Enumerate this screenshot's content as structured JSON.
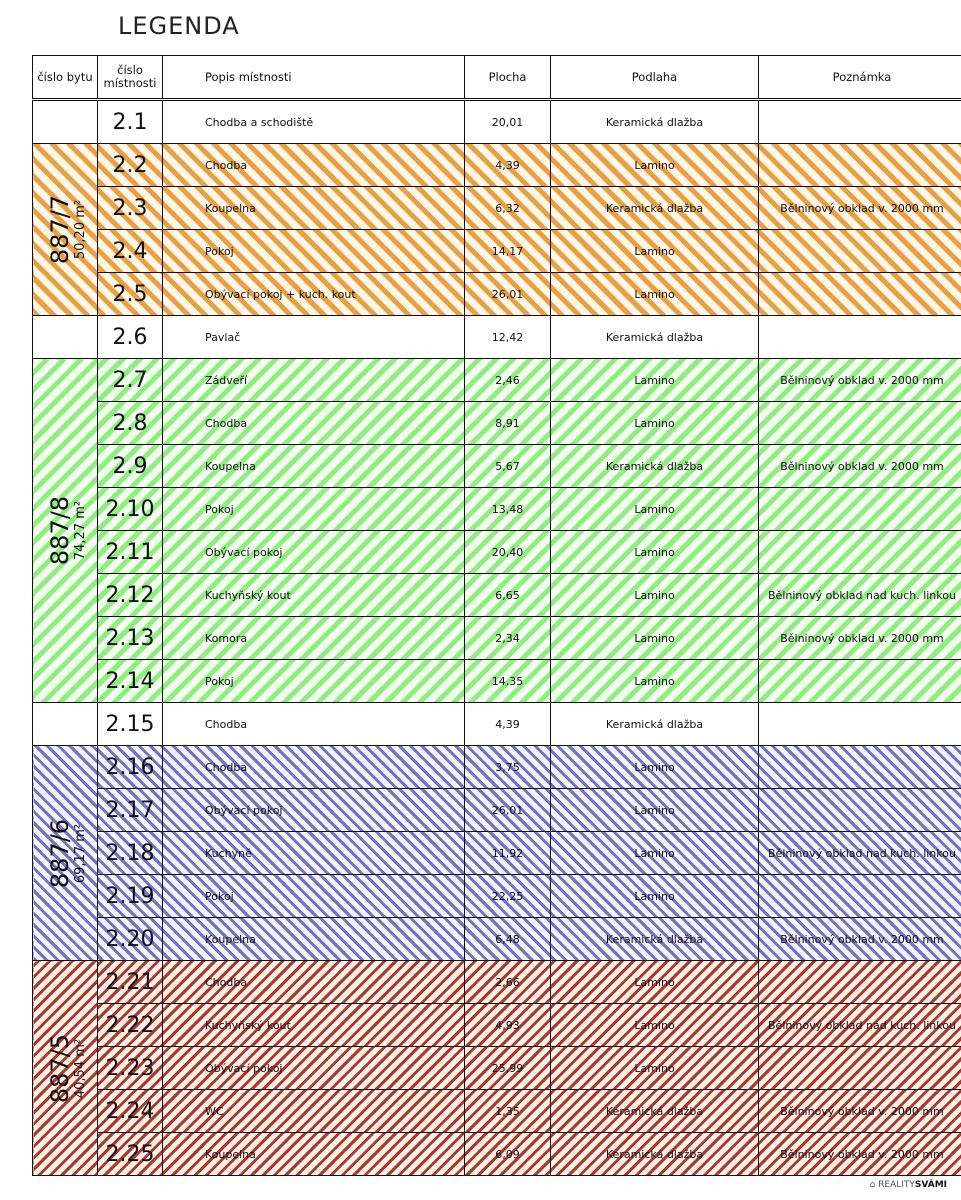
{
  "title": "LEGENDA",
  "headers": {
    "apartment": "číslo bytu",
    "room_no": "číslo místnosti",
    "description": "Popis místnosti",
    "area": "Plocha",
    "floor": "Podlaha",
    "note": "Poznámka"
  },
  "apartments": [
    {
      "code": "887/7",
      "size": "50,20 m²",
      "color": "#e8a040",
      "bg": "#fff6ea",
      "direction": "backslash",
      "first": 1,
      "count": 4
    },
    {
      "code": "887/8",
      "size": "74,27 m²",
      "color": "#90ee80",
      "bg": "#f2fdf0",
      "direction": "slash",
      "first": 6,
      "count": 8
    },
    {
      "code": "887/6",
      "size": "69,17 m²",
      "color": "#7272c4",
      "bg": "#f4f4ff",
      "direction": "backslash",
      "first": 15,
      "count": 5
    },
    {
      "code": "887/5",
      "size": "40,54 m²",
      "color": "#a83a2a",
      "bg": "#fff0ec",
      "direction": "slash",
      "first": 20,
      "count": 5
    }
  ],
  "rows": [
    {
      "no": "2.1",
      "name": "Chodba a schodiště",
      "area": "20,01",
      "floor": "Keramická dlažba",
      "note": ""
    },
    {
      "no": "2.2",
      "name": "Chodba",
      "area": "4,39",
      "floor": "Lamino",
      "note": ""
    },
    {
      "no": "2.3",
      "name": "Koupelna",
      "area": "6,32",
      "floor": "Keramická dlažba",
      "note": "Bělninový obklad v. 2000 mm"
    },
    {
      "no": "2.4",
      "name": "Pokoj",
      "area": "14,17",
      "floor": "Lamino",
      "note": ""
    },
    {
      "no": "2.5",
      "name": "Obývací pokoj + kuch. kout",
      "area": "26,01",
      "floor": "Lamino",
      "note": ""
    },
    {
      "no": "2.6",
      "name": "Pavlač",
      "area": "12,42",
      "floor": "Keramická dlažba",
      "note": ""
    },
    {
      "no": "2.7",
      "name": "Zádveří",
      "area": "2,46",
      "floor": "Lamino",
      "note": "Bělninový obklad v. 2000 mm"
    },
    {
      "no": "2.8",
      "name": "Chodba",
      "area": "8,91",
      "floor": "Lamino",
      "note": ""
    },
    {
      "no": "2.9",
      "name": "Koupelna",
      "area": "5,67",
      "floor": "Keramická dlažba",
      "note": "Bělninový obklad v. 2000 mm"
    },
    {
      "no": "2.10",
      "name": "Pokoj",
      "area": "13,48",
      "floor": "Lamino",
      "note": ""
    },
    {
      "no": "2.11",
      "name": "Obývací pokoj",
      "area": "20,40",
      "floor": "Lamino",
      "note": ""
    },
    {
      "no": "2.12",
      "name": "Kuchyňský kout",
      "area": "6,65",
      "floor": "Lamino",
      "note": "Bělninový obklad nad kuch. linkou"
    },
    {
      "no": "2.13",
      "name": "Komora",
      "area": "2,34",
      "floor": "Lamino",
      "note": "Bělninový obklad v. 2000 mm"
    },
    {
      "no": "2.14",
      "name": "Pokoj",
      "area": "14,35",
      "floor": "Lamino",
      "note": ""
    },
    {
      "no": "2.15",
      "name": "Chodba",
      "area": "4,39",
      "floor": "Keramická dlažba",
      "note": ""
    },
    {
      "no": "2.16",
      "name": "Chodba",
      "area": "3,75",
      "floor": "Lamino",
      "note": ""
    },
    {
      "no": "2.17",
      "name": "Obývací pokoj",
      "area": "26,01",
      "floor": "Lamino",
      "note": ""
    },
    {
      "no": "2.18",
      "name": "Kuchyně",
      "area": "11,92",
      "floor": "Lamino",
      "note": "Bělninový obklad nad kuch. linkou"
    },
    {
      "no": "2.19",
      "name": "Pokoj",
      "area": "22,25",
      "floor": "Lamino",
      "note": ""
    },
    {
      "no": "2.20",
      "name": "Koupelna",
      "area": "6,48",
      "floor": "Keramická dlažba",
      "note": "Bělninový obklad v. 2000 mm"
    },
    {
      "no": "2.21",
      "name": "Chodba",
      "area": "2,66",
      "floor": "Lamino",
      "note": ""
    },
    {
      "no": "2.22",
      "name": "Kuchyňský kout",
      "area": "4,93",
      "floor": "Lamino",
      "note": "Bělninový obklad nad kuch. linkou"
    },
    {
      "no": "2.23",
      "name": "Obývací pokoj",
      "area": "25,99",
      "floor": "Lamino",
      "note": ""
    },
    {
      "no": "2.24",
      "name": "WC",
      "area": "1,35",
      "floor": "Keramická dlažba",
      "note": "Bělninový obklad v. 2000 mm"
    },
    {
      "no": "2.25",
      "name": "Koupelna",
      "area": "6,09",
      "floor": "Keramická dlažba",
      "note": "Bělninový obklad v. 2000 mm"
    }
  ],
  "watermark": {
    "left": "REALITY",
    "right": "SVÁMI"
  }
}
